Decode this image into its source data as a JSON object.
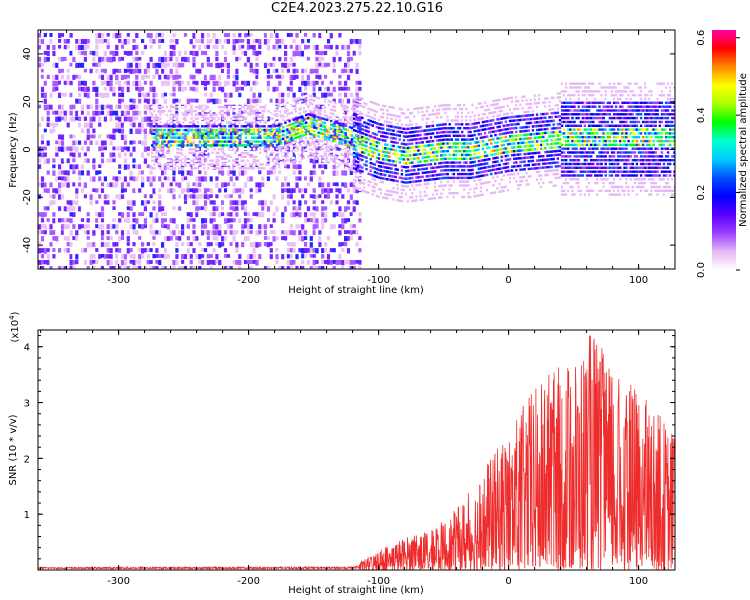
{
  "title": "C2E4.2023.275.22.10.G16",
  "chart_data": [
    {
      "type": "heatmap",
      "name": "spectrogram",
      "xlabel": "Height of straight line (km)",
      "ylabel": "Frequency (Hz)",
      "xlim": [
        -362,
        128
      ],
      "ylim": [
        -50,
        50
      ],
      "xticks": [
        -300,
        -200,
        -100,
        0,
        100
      ],
      "yticks": [
        -40,
        -20,
        0,
        20,
        40
      ],
      "colorbar": {
        "label": "Normalized spectral amplitude",
        "range": [
          0.0,
          0.62
        ],
        "ticks": [
          0.0,
          0.2,
          0.4,
          0.6
        ],
        "colors": [
          "#ffffff",
          "#e6b8f5",
          "#9a40ff",
          "#5a00ff",
          "#0000ff",
          "#0050ff",
          "#00ccff",
          "#00ffcc",
          "#00ff00",
          "#aaff00",
          "#ffff00",
          "#ff8800",
          "#ff0000",
          "#ff00aa"
        ]
      },
      "noise_region_x": [
        -362,
        -115
      ],
      "ridge": [
        {
          "x": -270,
          "f": 5
        },
        {
          "x": -220,
          "f": 5
        },
        {
          "x": -180,
          "f": 5
        },
        {
          "x": -155,
          "f": 10
        },
        {
          "x": -130,
          "f": 6
        },
        {
          "x": -100,
          "f": 0
        },
        {
          "x": -80,
          "f": -2
        },
        {
          "x": -50,
          "f": 0
        },
        {
          "x": -30,
          "f": 0
        },
        {
          "x": 0,
          "f": 3
        },
        {
          "x": 40,
          "f": 5
        },
        {
          "x": 80,
          "f": 5
        },
        {
          "x": 128,
          "f": 5
        }
      ]
    },
    {
      "type": "line",
      "name": "snr",
      "xlabel": "Height of straight line (km)",
      "ylabel": "SNR (10 * v/v)",
      "multiplier_label": "(x10",
      "multiplier_exponent": "4",
      "xlim": [
        -362,
        128
      ],
      "ylim": [
        0,
        4.3
      ],
      "xticks": [
        -300,
        -200,
        -100,
        0,
        100
      ],
      "yticks": [
        1,
        2,
        3,
        4
      ],
      "color": "#ee2c2c",
      "envelope": [
        {
          "x": -362,
          "max": 0.05
        },
        {
          "x": -120,
          "max": 0.06
        },
        {
          "x": -100,
          "max": 0.35
        },
        {
          "x": -80,
          "max": 0.6
        },
        {
          "x": -60,
          "max": 0.7
        },
        {
          "x": -40,
          "max": 1.1
        },
        {
          "x": -20,
          "max": 1.8
        },
        {
          "x": 0,
          "max": 2.5
        },
        {
          "x": 20,
          "max": 3.3
        },
        {
          "x": 40,
          "max": 3.7
        },
        {
          "x": 50,
          "max": 3.9
        },
        {
          "x": 65,
          "max": 4.3
        },
        {
          "x": 80,
          "max": 3.6
        },
        {
          "x": 100,
          "max": 3.2
        },
        {
          "x": 128,
          "max": 2.5
        }
      ]
    }
  ]
}
